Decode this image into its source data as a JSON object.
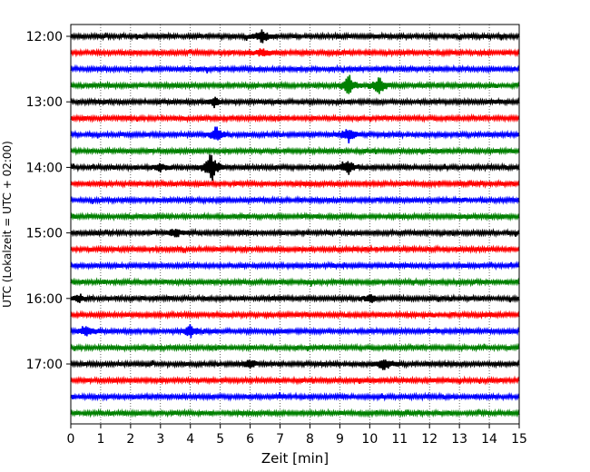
{
  "chart_data": {
    "type": "line",
    "title": "",
    "xlabel": "Zeit  [min]",
    "ylabel": "UTC (Lokalzeit = UTC + 02:00)",
    "xlim": [
      0,
      15
    ],
    "x_ticks": [
      "0",
      "1",
      "2",
      "3",
      "4",
      "5",
      "6",
      "7",
      "8",
      "9",
      "10",
      "11",
      "12",
      "13",
      "14",
      "15"
    ],
    "y_tick_labels": [
      "12:00",
      "13:00",
      "14:00",
      "15:00",
      "16:00",
      "17:00"
    ],
    "grid": "vertical dotted at each minute",
    "trace_interval_min": 15,
    "trace_count": 24,
    "start_time": "12:00",
    "colors_cycle": [
      "#000000",
      "#ff0000",
      "#0000ff",
      "#008000"
    ],
    "events": [
      {
        "trace": 0,
        "minute": 6.4,
        "amplitude": 0.5
      },
      {
        "trace": 1,
        "minute": 6.4,
        "amplitude": 0.3
      },
      {
        "trace": 3,
        "minute": 9.3,
        "amplitude": 0.9
      },
      {
        "trace": 3,
        "minute": 10.3,
        "amplitude": 0.7
      },
      {
        "trace": 4,
        "minute": 4.8,
        "amplitude": 0.4
      },
      {
        "trace": 6,
        "minute": 4.9,
        "amplitude": 0.6
      },
      {
        "trace": 6,
        "minute": 9.3,
        "amplitude": 0.6
      },
      {
        "trace": 8,
        "minute": 4.7,
        "amplitude": 1.2
      },
      {
        "trace": 8,
        "minute": 9.3,
        "amplitude": 0.5
      },
      {
        "trace": 8,
        "minute": 3.0,
        "amplitude": 0.3
      },
      {
        "trace": 12,
        "minute": 3.5,
        "amplitude": 0.3
      },
      {
        "trace": 16,
        "minute": 0.3,
        "amplitude": 0.3
      },
      {
        "trace": 16,
        "minute": 10.0,
        "amplitude": 0.3
      },
      {
        "trace": 18,
        "minute": 0.5,
        "amplitude": 0.5
      },
      {
        "trace": 18,
        "minute": 4.0,
        "amplitude": 0.5
      },
      {
        "trace": 20,
        "minute": 10.5,
        "amplitude": 0.5
      },
      {
        "trace": 20,
        "minute": 6.0,
        "amplitude": 0.3
      }
    ]
  }
}
